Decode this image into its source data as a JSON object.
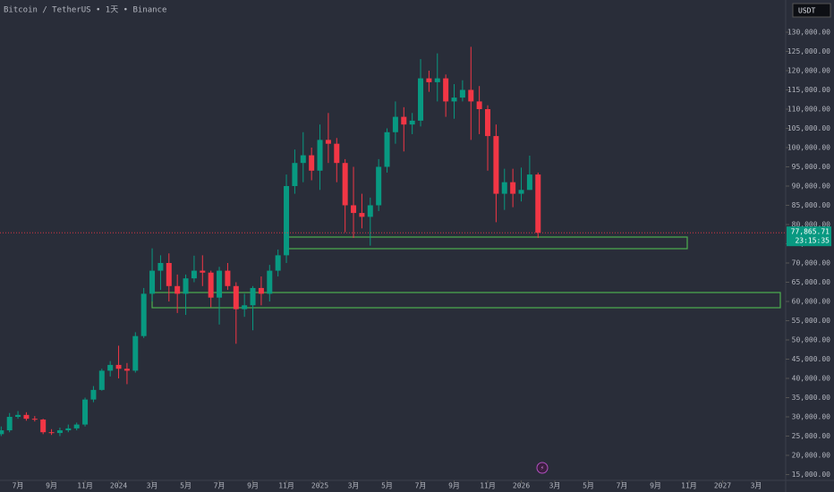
{
  "chart_data": {
    "type": "candlestick",
    "title": "Bitcoin / TetherUS • 1天 • Binance",
    "currency": "USDT",
    "last_label": "77,865.71",
    "countdown": "23:15:35",
    "up_color": "#089981",
    "down_color": "#f23645",
    "x": [
      5,
      5.5,
      6,
      6.5,
      7,
      7.5,
      8,
      8.5,
      9,
      9.5,
      10,
      10.5,
      11,
      11.5,
      12,
      12.5,
      13,
      13.5,
      14,
      14.5,
      15,
      15.5,
      16,
      16.5,
      17,
      17.5,
      18,
      18.5,
      19,
      19.5,
      20,
      20.5,
      21,
      21.5,
      22,
      22.5,
      23,
      23.5,
      24,
      24.5,
      25,
      25.5,
      26,
      26.5,
      27,
      27.5,
      28,
      28.5,
      29,
      29.5,
      30,
      30.5,
      31,
      31.5,
      32,
      32.5,
      33,
      33.5,
      34,
      34.5,
      35,
      35.5,
      36,
      36.5,
      37
    ],
    "open": [
      25500,
      26500,
      30000,
      30500,
      29500,
      29300,
      26000,
      25800,
      26500,
      27000,
      28000,
      34500,
      37000,
      42000,
      43500,
      42500,
      42000,
      51000,
      62000,
      68000,
      70000,
      64000,
      62000,
      66000,
      68000,
      67500,
      61000,
      68000,
      64000,
      58000,
      59000,
      63500,
      62000,
      68000,
      72000,
      90000,
      96000,
      98000,
      94000,
      102000,
      101000,
      96000,
      85000,
      83000,
      82000,
      85000,
      95000,
      104000,
      108000,
      106000,
      107000,
      118000,
      117000,
      118000,
      112000,
      113000,
      115000,
      112000,
      110000,
      103000,
      88000,
      91000,
      88000,
      89000,
      93000
    ],
    "high": [
      27500,
      31000,
      31500,
      31200,
      30200,
      29500,
      26800,
      27200,
      28000,
      28500,
      35000,
      38000,
      42500,
      44500,
      48500,
      44000,
      52000,
      63500,
      73800,
      72000,
      72500,
      67000,
      67000,
      71900,
      72000,
      68000,
      69000,
      70000,
      65000,
      62000,
      64000,
      66500,
      69500,
      73500,
      93000,
      99500,
      104000,
      100000,
      106000,
      109000,
      102500,
      97000,
      95000,
      88000,
      87000,
      97000,
      105000,
      112000,
      110500,
      109000,
      123000,
      120000,
      124500,
      119000,
      116500,
      117500,
      126200,
      116000,
      111000,
      106000,
      94500,
      94500,
      94800,
      97900,
      93500
    ],
    "low": [
      25000,
      26000,
      29500,
      29000,
      28800,
      25500,
      25300,
      25000,
      26000,
      26500,
      27500,
      33800,
      36800,
      40500,
      40000,
      38500,
      41500,
      50500,
      60000,
      63000,
      60000,
      57000,
      56500,
      65000,
      64000,
      58500,
      54000,
      63000,
      49000,
      56000,
      52500,
      59000,
      60000,
      66500,
      70000,
      88000,
      91000,
      91500,
      89000,
      96000,
      91000,
      78000,
      76500,
      79000,
      74500,
      83500,
      93500,
      101000,
      99000,
      103500,
      105500,
      114500,
      112000,
      108000,
      107500,
      112000,
      102000,
      103500,
      94000,
      80600,
      83800,
      84500,
      86000,
      89000,
      76500
    ],
    "close": [
      26500,
      30000,
      30500,
      29500,
      29300,
      26000,
      25800,
      26500,
      27000,
      28000,
      34500,
      37000,
      42000,
      43500,
      42500,
      42000,
      51000,
      62000,
      68000,
      70000,
      64000,
      62000,
      66000,
      68000,
      67500,
      61000,
      68000,
      64000,
      58000,
      59000,
      63500,
      62000,
      68000,
      72000,
      90000,
      96000,
      98000,
      94000,
      102000,
      101000,
      96000,
      85000,
      83000,
      82000,
      85000,
      95000,
      104000,
      108000,
      106000,
      107000,
      118000,
      117000,
      118000,
      112000,
      113000,
      115000,
      112000,
      110000,
      103000,
      88000,
      91000,
      88000,
      89000,
      93000,
      77865.71
    ],
    "xlim": [
      4.93,
      51.6
    ],
    "xticks": [
      {
        "value": 6,
        "label": "7月"
      },
      {
        "value": 8,
        "label": "9月"
      },
      {
        "value": 10,
        "label": "11月"
      },
      {
        "value": 12,
        "label": "2024"
      },
      {
        "value": 14,
        "label": "3月"
      },
      {
        "value": 16,
        "label": "5月"
      },
      {
        "value": 18,
        "label": "7月"
      },
      {
        "value": 20,
        "label": "9月"
      },
      {
        "value": 22,
        "label": "11月"
      },
      {
        "value": 24,
        "label": "2025"
      },
      {
        "value": 26,
        "label": "3月"
      },
      {
        "value": 28,
        "label": "5月"
      },
      {
        "value": 30,
        "label": "7月"
      },
      {
        "value": 32,
        "label": "9月"
      },
      {
        "value": 34,
        "label": "11月"
      },
      {
        "value": 36,
        "label": "2026"
      },
      {
        "value": 38,
        "label": "3月"
      },
      {
        "value": 40,
        "label": "5月"
      },
      {
        "value": 42,
        "label": "7月"
      },
      {
        "value": 44,
        "label": "9月"
      },
      {
        "value": 46,
        "label": "11月"
      },
      {
        "value": 48,
        "label": "2027"
      },
      {
        "value": 50,
        "label": "3月"
      }
    ],
    "ylim": [
      13950,
      138370
    ],
    "yticks": [
      {
        "value": 130000,
        "label": "130,000.00"
      },
      {
        "value": 125000,
        "label": "125,000.00"
      },
      {
        "value": 120000,
        "label": "120,000.00"
      },
      {
        "value": 115000,
        "label": "115,000.00"
      },
      {
        "value": 110000,
        "label": "110,000.00"
      },
      {
        "value": 105000,
        "label": "105,000.00"
      },
      {
        "value": 100000,
        "label": "100,000.00"
      },
      {
        "value": 95000,
        "label": "95,000.00"
      },
      {
        "value": 90000,
        "label": "90,000.00"
      },
      {
        "value": 85000,
        "label": "85,000.00"
      },
      {
        "value": 80000,
        "label": "80,000.00"
      },
      {
        "value": 75000,
        "label": "75,000.00"
      },
      {
        "value": 70000,
        "label": "70,000.00"
      },
      {
        "value": 65000,
        "label": "65,000.00"
      },
      {
        "value": 60000,
        "label": "60,000.00"
      },
      {
        "value": 55000,
        "label": "55,000.00"
      },
      {
        "value": 50000,
        "label": "50,000.00"
      },
      {
        "value": 45000,
        "label": "45,000.00"
      },
      {
        "value": 40000,
        "label": "40,000.00"
      },
      {
        "value": 35000,
        "label": "35,000.00"
      },
      {
        "value": 30000,
        "label": "30,000.00"
      },
      {
        "value": 25000,
        "label": "25,000.00"
      },
      {
        "value": 20000,
        "label": "20,000.00"
      },
      {
        "value": 15000,
        "label": "15,000.00"
      }
    ],
    "grid": false
  }
}
